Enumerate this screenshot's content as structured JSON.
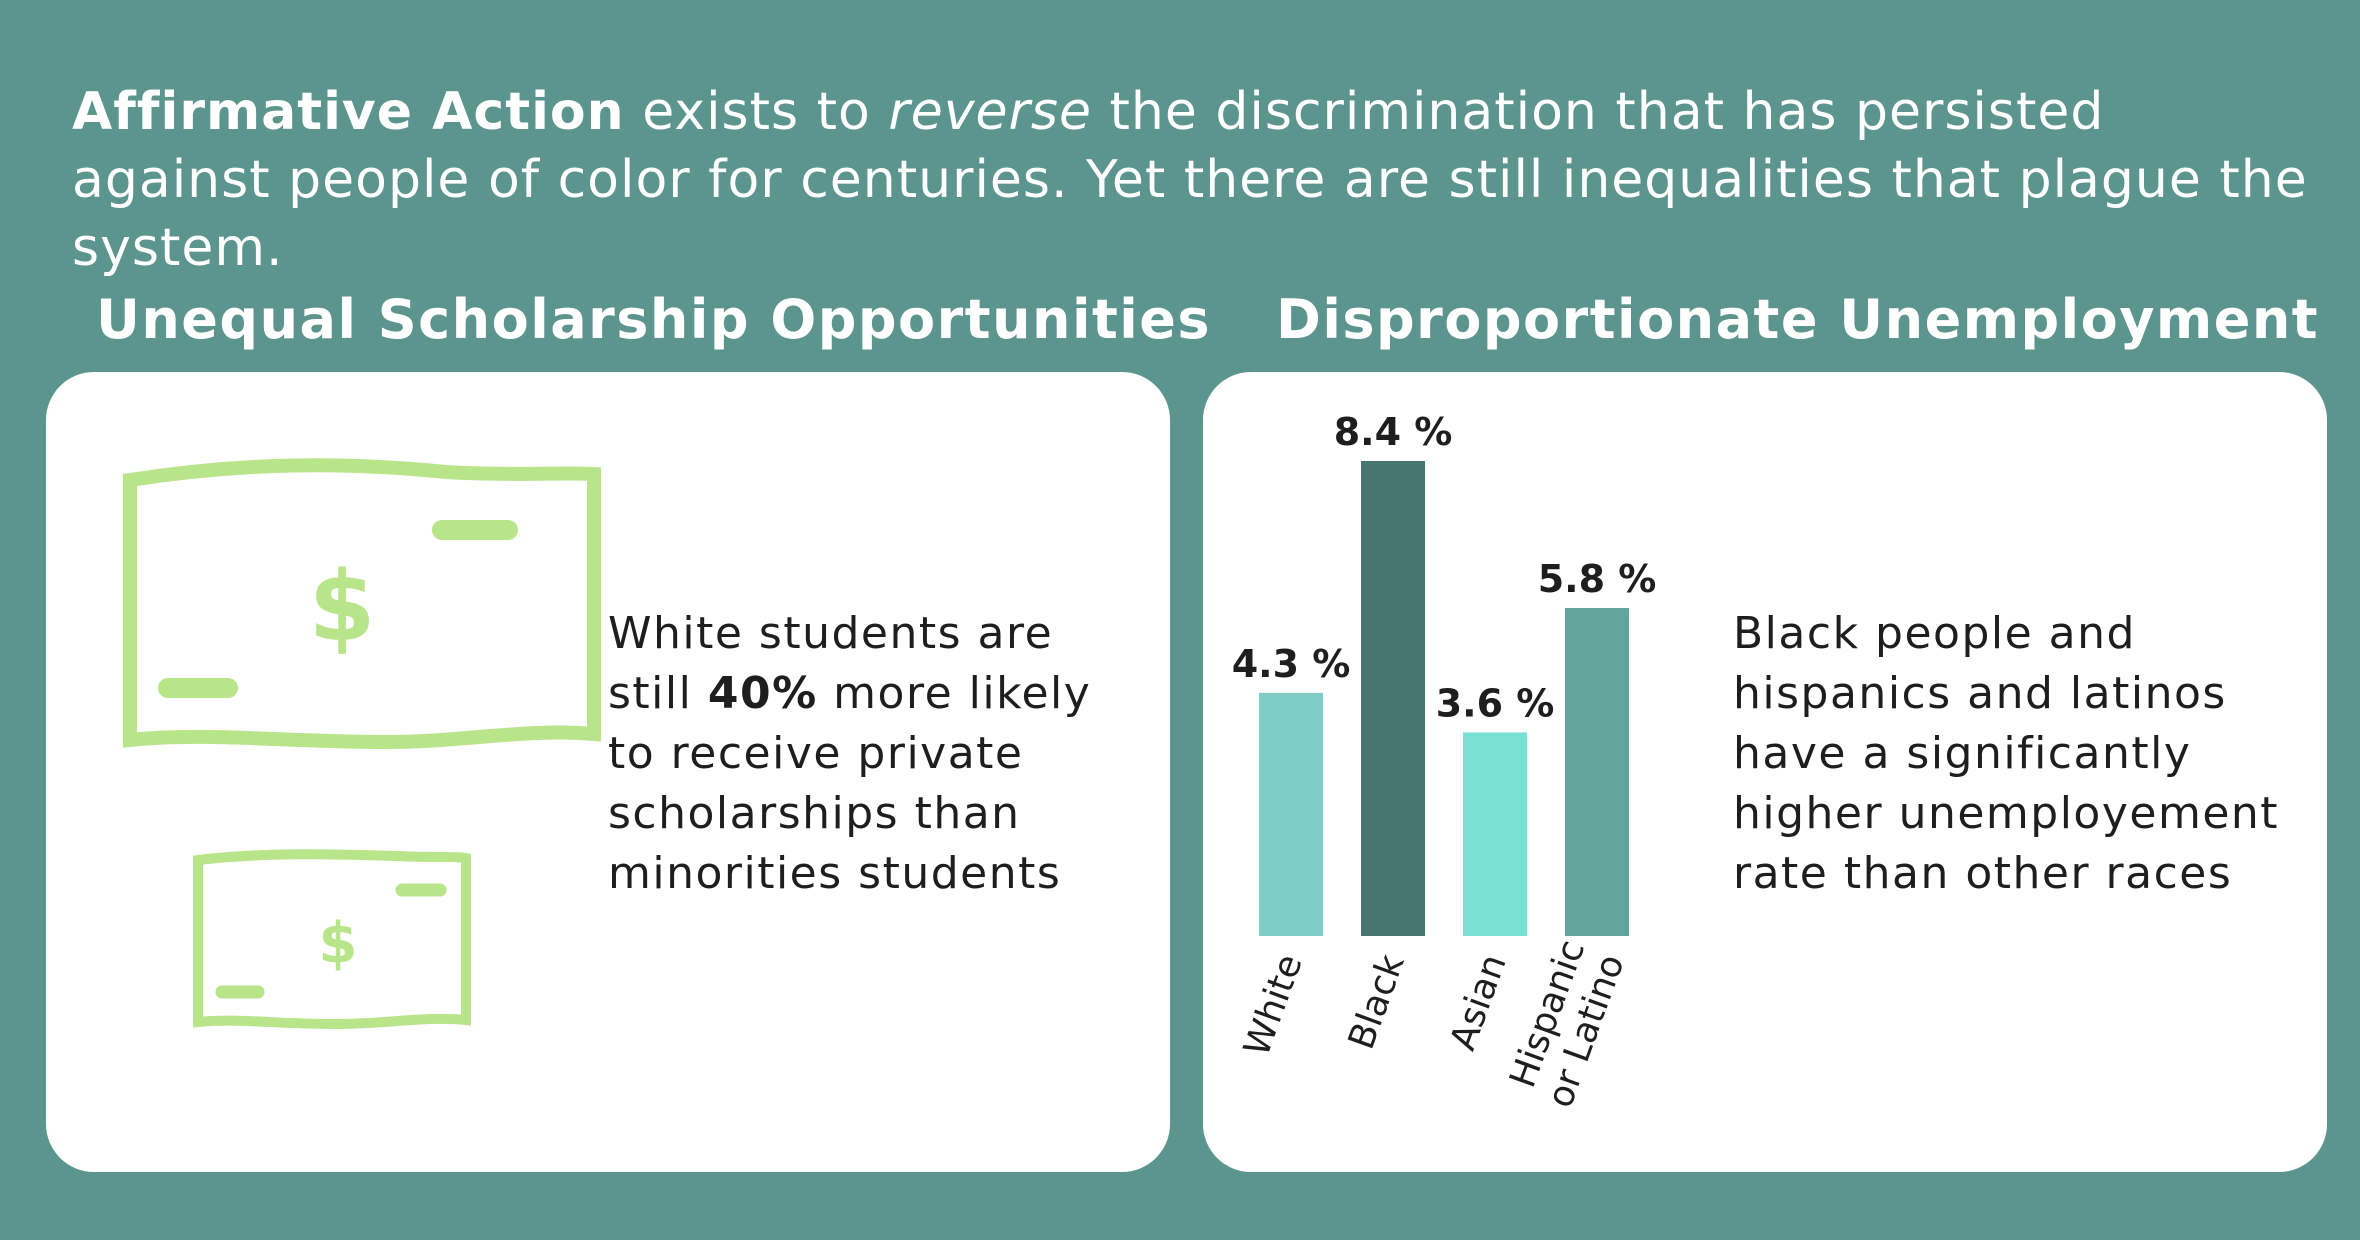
{
  "intro": {
    "bold": "Affirmative Action",
    "part1": " exists to ",
    "italic": "reverse",
    "part2": " the discrimination that has persisted against people of color for centuries. Yet there are still inequalities that plague the system."
  },
  "scholarship": {
    "title": "Unequal Scholarship Opportunities",
    "text_before": "White students are still ",
    "text_bold": "40%",
    "text_after": " more likely to receive private scholarships than minorities students",
    "icons": [
      "dollar-bill-icon",
      "dollar-bill-icon"
    ],
    "icon_color": "#b9e58a"
  },
  "unemployment": {
    "title": "Disproportionate Unemployment",
    "text": "Black people and hispanics and latinos have a significantly higher unemployement rate than other races"
  },
  "chart_data": {
    "type": "bar",
    "categories": [
      "White",
      "Black",
      "Asian",
      "Hispanic or Latino"
    ],
    "category_lines": [
      [
        "White"
      ],
      [
        "Black"
      ],
      [
        "Asian"
      ],
      [
        "Hispanic",
        "or Latino"
      ]
    ],
    "values": [
      4.3,
      8.4,
      3.6,
      5.8
    ],
    "value_labels": [
      "4.3 %",
      "8.4 %",
      "3.6 %",
      "5.8 %"
    ],
    "colors": [
      "#7ecec6",
      "#477570",
      "#79e0d6",
      "#62a59c"
    ],
    "ylim": [
      0,
      8.4
    ],
    "grid": false,
    "legend": "none"
  }
}
